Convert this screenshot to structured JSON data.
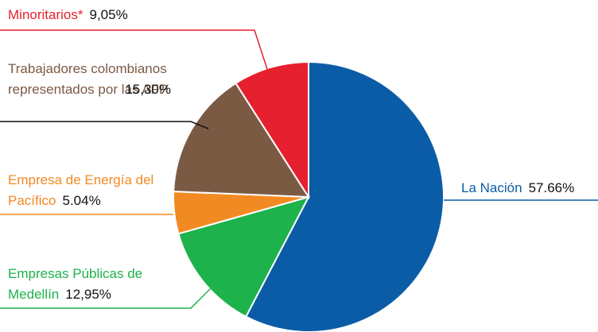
{
  "chart_data": {
    "type": "pie",
    "categories": [
      "La Nación",
      "Empresas Públicas de Medellín",
      "Empresa de Energía del Pacífico",
      "Trabajadores colombianos representados por las AFP",
      "Minoritarios*"
    ],
    "values": [
      57.66,
      12.95,
      5.04,
      15.3,
      9.05
    ],
    "value_labels": [
      "57.66%",
      "12,95%",
      "5.04%",
      "15,30%",
      "9,05%"
    ],
    "colors": [
      "#0b5ca7",
      "#1db24c",
      "#f28a23",
      "#7b5a44",
      "#e6202f"
    ]
  }
}
